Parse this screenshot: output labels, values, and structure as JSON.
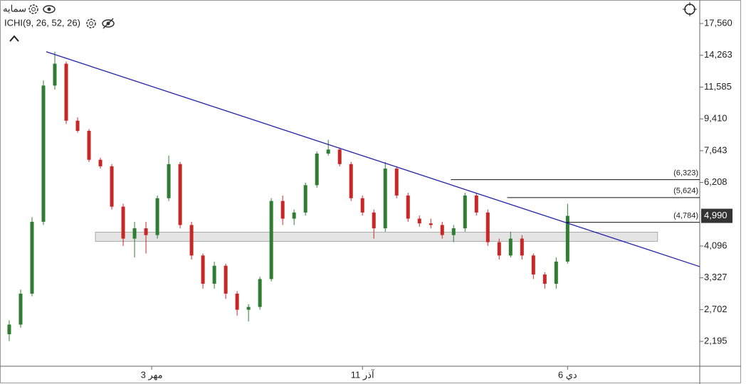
{
  "chart_data": {
    "type": "candlestick",
    "title": "سمایه",
    "indicator": "ICHI(9, 26, 52, 26)",
    "log_scale": true,
    "up_color": "#2e7d32",
    "down_color": "#c62828",
    "xlim": [
      -0.81,
      60.6
    ],
    "xticks": [
      {
        "value": 12.5,
        "label": "3 مهر"
      },
      {
        "value": 31,
        "label": "11 آذر"
      },
      {
        "value": 49,
        "label": "6 دي"
      }
    ],
    "ylim": [
      1866,
      20480
    ],
    "yticks": [
      {
        "value": 17560,
        "label": "17,560"
      },
      {
        "value": 14263,
        "label": "14,263"
      },
      {
        "value": 11585,
        "label": "11,585"
      },
      {
        "value": 9410,
        "label": "9,410"
      },
      {
        "value": 7643,
        "label": "7,643"
      },
      {
        "value": 6208,
        "label": "6,208"
      },
      {
        "value": 4096,
        "label": "4,096"
      },
      {
        "value": 3327,
        "label": "3,327"
      },
      {
        "value": 2702,
        "label": "2,702"
      },
      {
        "value": 2195,
        "label": "2,195"
      }
    ],
    "last_price": {
      "value": 4990,
      "label": "4,990"
    },
    "open": [
      2300,
      2450,
      3000,
      4800,
      11700,
      13500,
      9300,
      8700,
      7200,
      6900,
      5300,
      4300,
      4600,
      4400,
      5600,
      7000,
      4700,
      3850,
      3200,
      3600,
      3000,
      2700,
      2750,
      3300,
      5500,
      4900,
      5100,
      6100,
      7500,
      7700,
      7000,
      5600,
      5100,
      4600,
      6800,
      5700,
      4900,
      4750,
      4700,
      4400,
      4600,
      5700,
      5100,
      4200,
      3850,
      4300,
      3850,
      3400,
      3200,
      3700
    ],
    "close": [
      2450,
      3000,
      4800,
      11700,
      13500,
      9300,
      8700,
      7200,
      6900,
      5300,
      4300,
      4600,
      4400,
      5600,
      7000,
      4700,
      3850,
      3200,
      3600,
      3000,
      2700,
      2750,
      3300,
      5500,
      4900,
      5100,
      6100,
      7500,
      7700,
      7000,
      5600,
      5100,
      4600,
      6800,
      5700,
      4900,
      4750,
      4700,
      4400,
      4600,
      5700,
      5100,
      4200,
      3850,
      4300,
      3850,
      3400,
      3200,
      3700,
      4990
    ],
    "high": [
      2520,
      3080,
      4950,
      12100,
      14600,
      13700,
      9500,
      8800,
      7300,
      7000,
      5400,
      4800,
      4800,
      5700,
      7400,
      7100,
      4800,
      3900,
      3700,
      3650,
      3050,
      2800,
      3350,
      5600,
      5700,
      5200,
      6200,
      7600,
      8200,
      7800,
      7100,
      5700,
      5200,
      7100,
      6900,
      5800,
      5000,
      4900,
      4800,
      4700,
      5800,
      5800,
      5200,
      4300,
      4500,
      4400,
      3900,
      3450,
      3800,
      5400
    ],
    "low": [
      2200,
      2400,
      2950,
      4700,
      11400,
      9100,
      8600,
      7100,
      6800,
      5200,
      4100,
      3800,
      3900,
      4300,
      5500,
      4600,
      3750,
      3100,
      3100,
      2900,
      2600,
      2500,
      2700,
      3250,
      4700,
      4700,
      5000,
      6000,
      7400,
      6900,
      5500,
      5000,
      4300,
      4500,
      5600,
      4800,
      4650,
      4600,
      4300,
      4200,
      4500,
      5000,
      4100,
      3750,
      3800,
      3750,
      3300,
      3100,
      3100,
      3650
    ],
    "trendline": {
      "x": [
        3.25,
        60.6
      ],
      "y": [
        14600,
        3580
      ],
      "color": "#2222aa"
    },
    "zone": {
      "x": [
        7.56,
        56.9
      ],
      "y": [
        4223,
        4485
      ]
    },
    "levels": [
      {
        "value": 6323,
        "label": "(6,323)",
        "x0": 38.75
      },
      {
        "value": 5624,
        "label": "(5,624)",
        "x0": 43.7
      },
      {
        "value": 4784,
        "label": "(4,784)",
        "x0": 48.9
      }
    ]
  }
}
